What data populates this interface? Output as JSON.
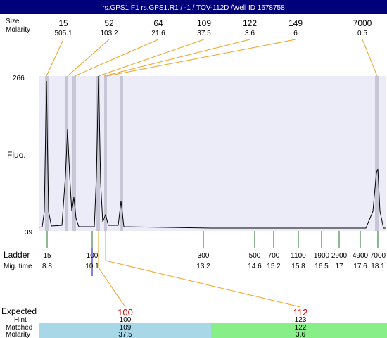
{
  "header": {
    "title": "rs.GPS1 F1  rs.GPS1.R1 / -1 / TOV-112D  /Well ID 1678758"
  },
  "peaks": {
    "labels": {
      "size": "Size",
      "molarity": "Molarity"
    },
    "items": [
      {
        "size": "15",
        "molarity": "505.1"
      },
      {
        "size": "52",
        "molarity": "103.2"
      },
      {
        "size": "64",
        "molarity": "21.6"
      },
      {
        "size": "109",
        "molarity": "37.5"
      },
      {
        "size": "122",
        "molarity": "3.6"
      },
      {
        "size": "149",
        "molarity": "6"
      },
      {
        "size": "7000",
        "molarity": "0.5"
      }
    ]
  },
  "plot": {
    "y_label": "Fluo.",
    "y_top": "266",
    "y_bottom": "39"
  },
  "ladder": {
    "label": "Ladder",
    "mig_label": "Mig. time",
    "items": [
      {
        "size": "15",
        "mig_time": "8.8"
      },
      {
        "size": "100",
        "mig_time": "10.1"
      },
      {
        "size": "300",
        "mig_time": "13.2"
      },
      {
        "size": "500",
        "mig_time": "14.6"
      },
      {
        "size": "700",
        "mig_time": "15.2"
      },
      {
        "size": "1100",
        "mig_time": "15.8"
      },
      {
        "size": "1900",
        "mig_time": "16.5"
      },
      {
        "size": "2900",
        "mig_time": "17"
      },
      {
        "size": "4900",
        "mig_time": "17.6"
      },
      {
        "size": "7000",
        "mig_time": "18.1"
      }
    ]
  },
  "expected": {
    "labels": {
      "expected": "Expected",
      "hint": "Hint",
      "matched": "Matched",
      "molarity": "Molarity"
    },
    "items": [
      {
        "expected": "100",
        "hint": "100",
        "matched": "109",
        "molarity": "37.5"
      },
      {
        "expected": "112",
        "hint": "123",
        "matched": "122",
        "molarity": "3.6"
      }
    ]
  }
}
